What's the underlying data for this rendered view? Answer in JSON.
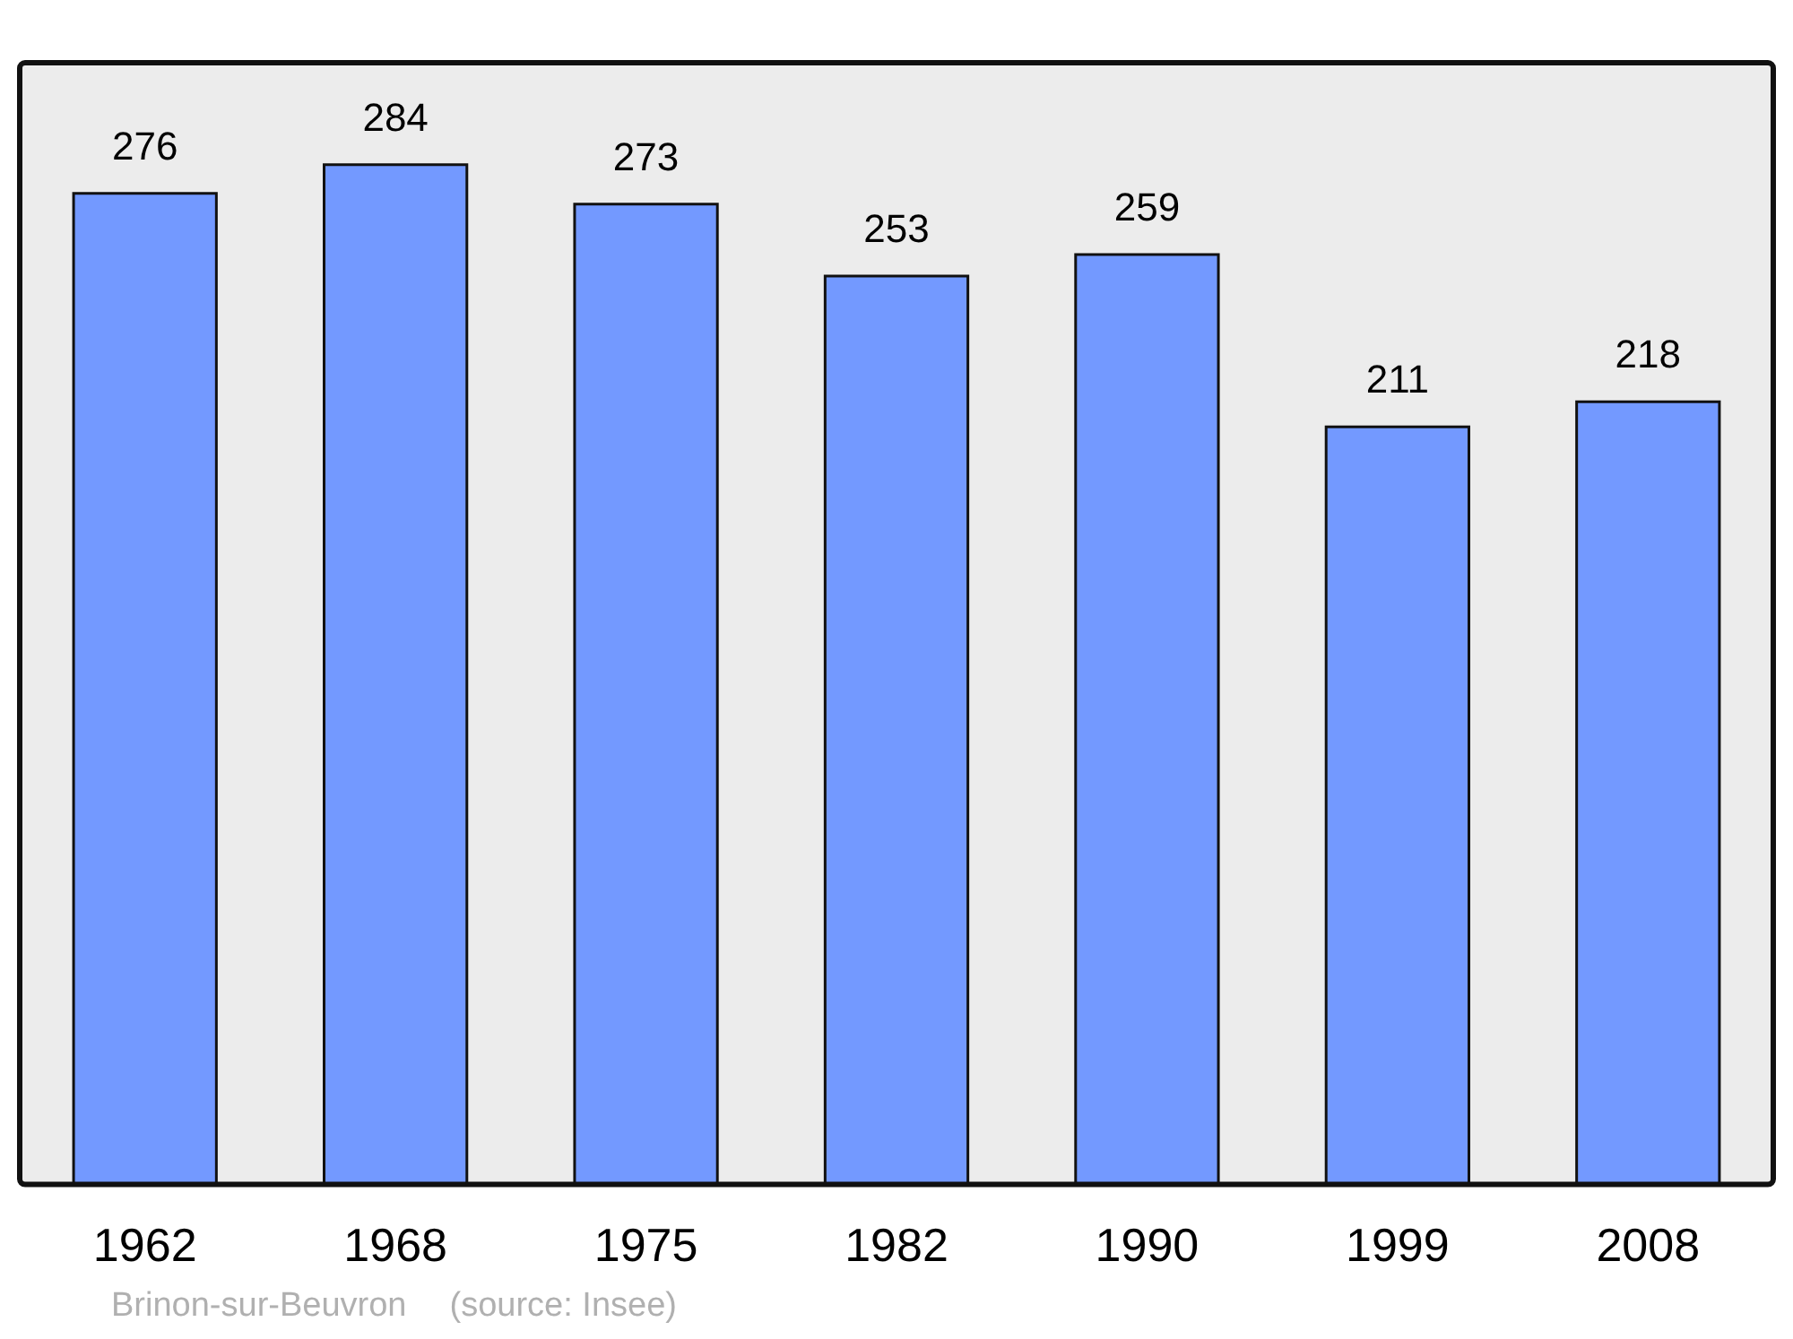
{
  "chart_data": {
    "type": "bar",
    "categories": [
      "1962",
      "1968",
      "1975",
      "1982",
      "1990",
      "1999",
      "2008"
    ],
    "values": [
      276,
      284,
      273,
      253,
      259,
      211,
      218
    ],
    "color": "#7399ff",
    "data_labels": true,
    "grid": false,
    "legend": false,
    "annotations": [
      "Brinon-sur-Beuvron",
      "(source: Insee)"
    ]
  }
}
